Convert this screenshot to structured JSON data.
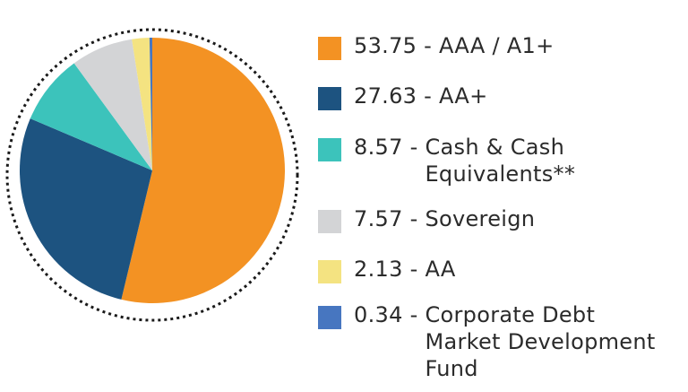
{
  "chart_data": {
    "type": "pie",
    "title": "",
    "slices": [
      {
        "value": 53.75,
        "value_text": "53.75",
        "label_lines": [
          "AAA / A1+"
        ],
        "color": "#f39223"
      },
      {
        "value": 27.63,
        "value_text": "27.63",
        "label_lines": [
          "AA+"
        ],
        "color": "#1d5380"
      },
      {
        "value": 8.57,
        "value_text": "8.57",
        "label_lines": [
          "Cash & Cash",
          "Equivalents**"
        ],
        "color": "#3cc3bb"
      },
      {
        "value": 7.57,
        "value_text": "7.57",
        "label_lines": [
          "Sovereign"
        ],
        "color": "#d3d4d6"
      },
      {
        "value": 2.13,
        "value_text": "2.13",
        "label_lines": [
          "AA"
        ],
        "color": "#f4e381"
      },
      {
        "value": 0.34,
        "value_text": "0.34",
        "label_lines": [
          "Corporate Debt",
          "Market Development",
          "Fund"
        ],
        "color": "#4776c0"
      }
    ],
    "legend_position": "right",
    "outline": "dotted-circle"
  }
}
